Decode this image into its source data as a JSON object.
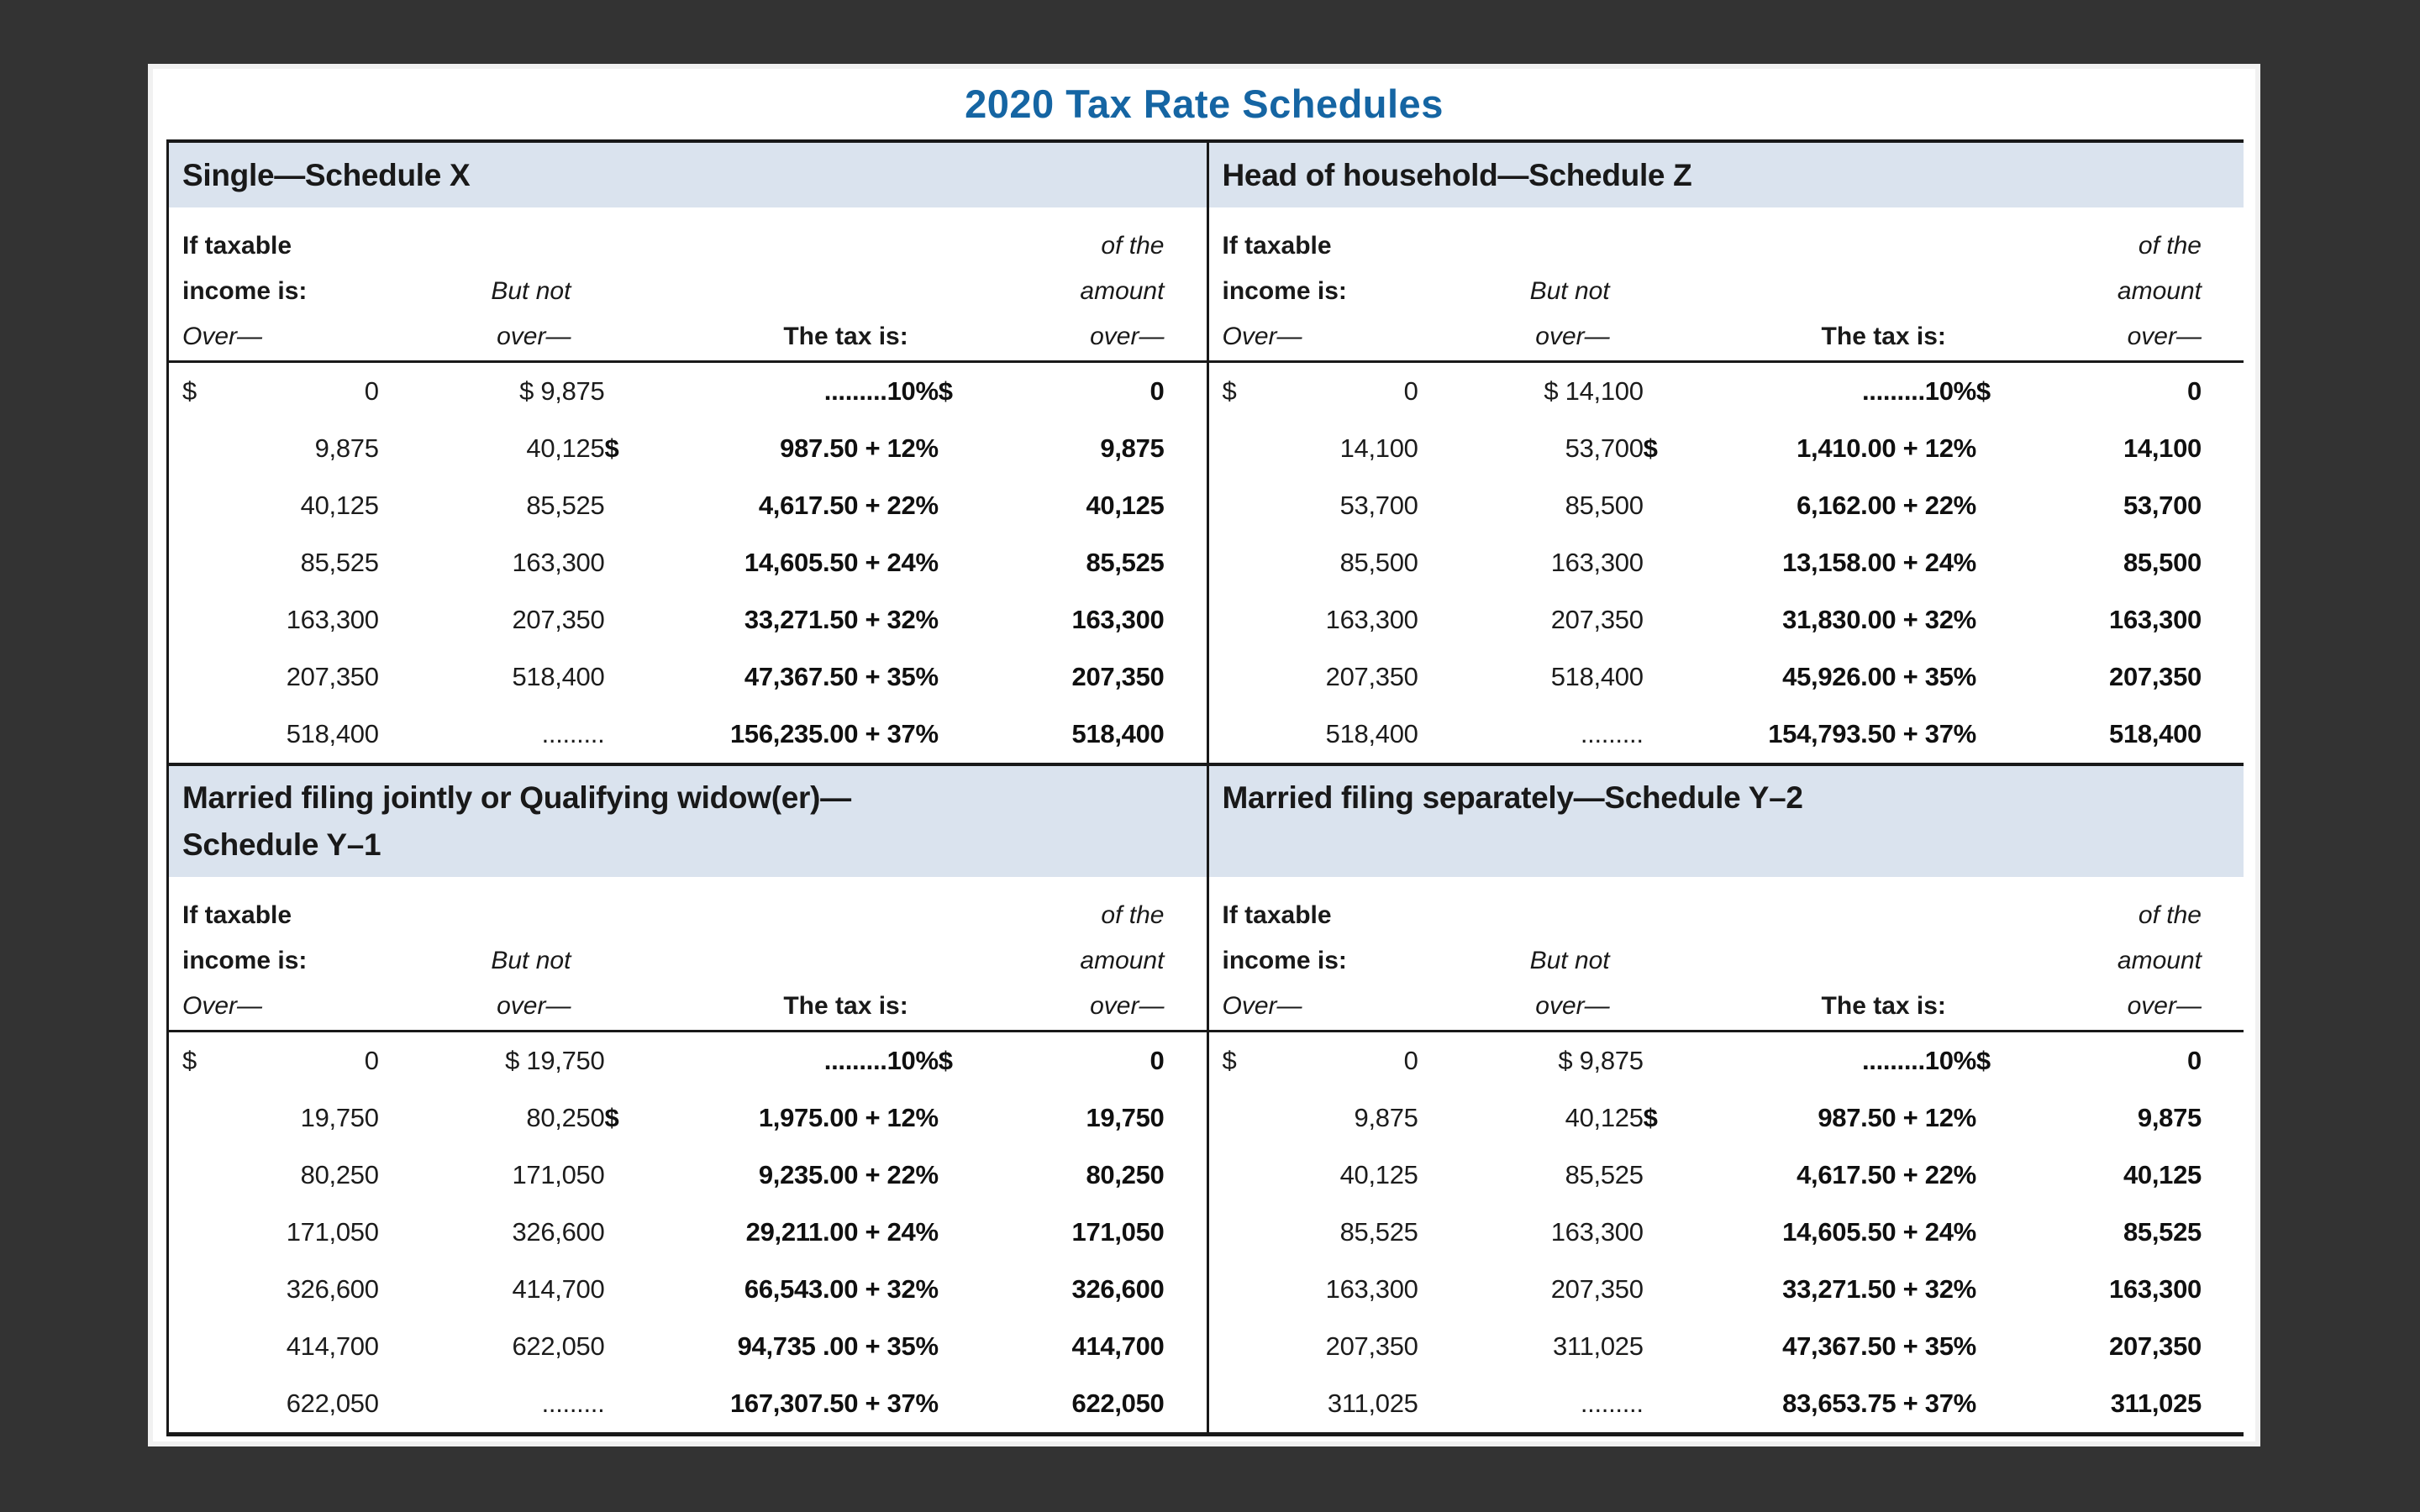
{
  "page": {
    "title": "2020 Tax Rate Schedules",
    "background_color": "#333333",
    "card_color": "#ffffff",
    "title_color": "#1565a3",
    "header_bar_color": "#dae3ee",
    "rule_color": "#191919"
  },
  "column_headers": {
    "if_taxable": "If taxable",
    "income_is": "income is:",
    "over_left": "Over—",
    "but_not": "But not",
    "but_not_over": "over—",
    "tax_is": "The tax is:",
    "of_the": "of the",
    "amount": "amount",
    "amount_over": "over—"
  },
  "schedules": [
    {
      "id": "single",
      "title": "Single—Schedule X",
      "title_line2": "",
      "rows": [
        {
          "over_dollar": "$",
          "over": "0",
          "but_not": "$ 9,875",
          "tax_dollar": "",
          "tax": ".........10%",
          "amount_dollar": "$",
          "amount": "0"
        },
        {
          "over_dollar": "",
          "over": "9,875",
          "but_not": "40,125",
          "tax_dollar": "$",
          "tax": "987.50 + 12%",
          "amount_dollar": "",
          "amount": "9,875"
        },
        {
          "over_dollar": "",
          "over": "40,125",
          "but_not": "85,525",
          "tax_dollar": "",
          "tax": "4,617.50 + 22%",
          "amount_dollar": "",
          "amount": "40,125"
        },
        {
          "over_dollar": "",
          "over": "85,525",
          "but_not": "163,300",
          "tax_dollar": "",
          "tax": "14,605.50 + 24%",
          "amount_dollar": "",
          "amount": "85,525"
        },
        {
          "over_dollar": "",
          "over": "163,300",
          "but_not": "207,350",
          "tax_dollar": "",
          "tax": "33,271.50 + 32%",
          "amount_dollar": "",
          "amount": "163,300"
        },
        {
          "over_dollar": "",
          "over": "207,350",
          "but_not": "518,400",
          "tax_dollar": "",
          "tax": "47,367.50 + 35%",
          "amount_dollar": "",
          "amount": "207,350"
        },
        {
          "over_dollar": "",
          "over": "518,400",
          "but_not": ".........",
          "tax_dollar": "",
          "tax": "156,235.00 + 37%",
          "amount_dollar": "",
          "amount": "518,400"
        }
      ]
    },
    {
      "id": "head-of-household",
      "title": "Head of household—Schedule Z",
      "title_line2": "",
      "rows": [
        {
          "over_dollar": "$",
          "over": "0",
          "but_not": "$ 14,100",
          "tax_dollar": "",
          "tax": ".........10%",
          "amount_dollar": "$",
          "amount": "0"
        },
        {
          "over_dollar": "",
          "over": "14,100",
          "but_not": "53,700",
          "tax_dollar": "$",
          "tax": "1,410.00 + 12%",
          "amount_dollar": "",
          "amount": "14,100"
        },
        {
          "over_dollar": "",
          "over": "53,700",
          "but_not": "85,500",
          "tax_dollar": "",
          "tax": "6,162.00 + 22%",
          "amount_dollar": "",
          "amount": "53,700"
        },
        {
          "over_dollar": "",
          "over": "85,500",
          "but_not": "163,300",
          "tax_dollar": "",
          "tax": "13,158.00 + 24%",
          "amount_dollar": "",
          "amount": "85,500"
        },
        {
          "over_dollar": "",
          "over": "163,300",
          "but_not": "207,350",
          "tax_dollar": "",
          "tax": "31,830.00 + 32%",
          "amount_dollar": "",
          "amount": "163,300"
        },
        {
          "over_dollar": "",
          "over": "207,350",
          "but_not": "518,400",
          "tax_dollar": "",
          "tax": "45,926.00 + 35%",
          "amount_dollar": "",
          "amount": "207,350"
        },
        {
          "over_dollar": "",
          "over": "518,400",
          "but_not": ".........",
          "tax_dollar": "",
          "tax": "154,793.50 + 37%",
          "amount_dollar": "",
          "amount": "518,400"
        }
      ]
    },
    {
      "id": "married-filing-jointly",
      "title": "Married filing jointly or Qualifying widow(er)—",
      "title_line2": "Schedule Y–1",
      "rows": [
        {
          "over_dollar": "$",
          "over": "0",
          "but_not": "$ 19,750",
          "tax_dollar": "",
          "tax": ".........10%",
          "amount_dollar": "$",
          "amount": "0"
        },
        {
          "over_dollar": "",
          "over": "19,750",
          "but_not": "80,250",
          "tax_dollar": "$",
          "tax": "1,975.00 + 12%",
          "amount_dollar": "",
          "amount": "19,750"
        },
        {
          "over_dollar": "",
          "over": "80,250",
          "but_not": "171,050",
          "tax_dollar": "",
          "tax": "9,235.00 + 22%",
          "amount_dollar": "",
          "amount": "80,250"
        },
        {
          "over_dollar": "",
          "over": "171,050",
          "but_not": "326,600",
          "tax_dollar": "",
          "tax": "29,211.00 + 24%",
          "amount_dollar": "",
          "amount": "171,050"
        },
        {
          "over_dollar": "",
          "over": "326,600",
          "but_not": "414,700",
          "tax_dollar": "",
          "tax": "66,543.00 + 32%",
          "amount_dollar": "",
          "amount": "326,600"
        },
        {
          "over_dollar": "",
          "over": "414,700",
          "but_not": "622,050",
          "tax_dollar": "",
          "tax": "94,735 .00 + 35%",
          "amount_dollar": "",
          "amount": "414,700"
        },
        {
          "over_dollar": "",
          "over": "622,050",
          "but_not": ".........",
          "tax_dollar": "",
          "tax": "167,307.50 + 37%",
          "amount_dollar": "",
          "amount": "622,050"
        }
      ]
    },
    {
      "id": "married-filing-separately",
      "title": "Married filing separately—Schedule Y–2",
      "title_line2": "",
      "rows": [
        {
          "over_dollar": "$",
          "over": "0",
          "but_not": "$ 9,875",
          "tax_dollar": "",
          "tax": ".........10%",
          "amount_dollar": "$",
          "amount": "0"
        },
        {
          "over_dollar": "",
          "over": "9,875",
          "but_not": "40,125",
          "tax_dollar": "$",
          "tax": "987.50 + 12%",
          "amount_dollar": "",
          "amount": "9,875"
        },
        {
          "over_dollar": "",
          "over": "40,125",
          "but_not": "85,525",
          "tax_dollar": "",
          "tax": "4,617.50 + 22%",
          "amount_dollar": "",
          "amount": "40,125"
        },
        {
          "over_dollar": "",
          "over": "85,525",
          "but_not": "163,300",
          "tax_dollar": "",
          "tax": "14,605.50 + 24%",
          "amount_dollar": "",
          "amount": "85,525"
        },
        {
          "over_dollar": "",
          "over": "163,300",
          "but_not": "207,350",
          "tax_dollar": "",
          "tax": "33,271.50 + 32%",
          "amount_dollar": "",
          "amount": "163,300"
        },
        {
          "over_dollar": "",
          "over": "207,350",
          "but_not": "311,025",
          "tax_dollar": "",
          "tax": "47,367.50 + 35%",
          "amount_dollar": "",
          "amount": "207,350"
        },
        {
          "over_dollar": "",
          "over": "311,025",
          "but_not": ".........",
          "tax_dollar": "",
          "tax": "83,653.75 + 37%",
          "amount_dollar": "",
          "amount": "311,025"
        }
      ]
    }
  ]
}
